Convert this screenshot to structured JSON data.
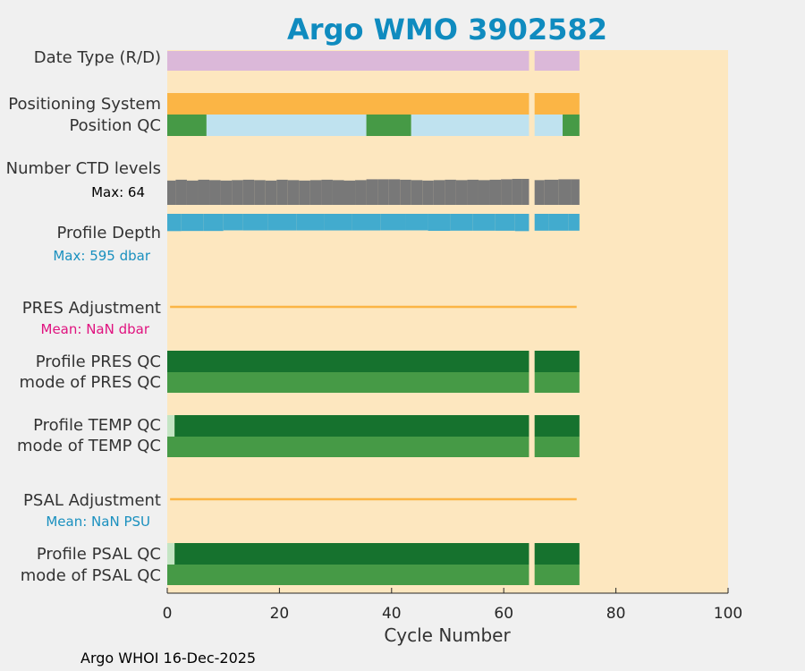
{
  "title": "Argo WMO 3902582",
  "footer": "Argo WHOI 16-Dec-2025",
  "colors": {
    "background": "#f0f0f0",
    "plot_area": "#fde7bf",
    "title": "#0f8bbf",
    "date_type": "#dbb8d9",
    "positioning": "#fbb545",
    "qc_good": "#469a46",
    "qc_light": "#bfe2ef",
    "qc_pale": "#c4e5c4",
    "qc_dark": "#16722e",
    "ctd": "#787878",
    "depth": "#42abce",
    "adjustment_line": "#fbb545",
    "depth_label": "#1a90bf",
    "pres_mean_label": "#e0127f",
    "psal_mean_label": "#1a90bf"
  },
  "chart_data": {
    "type": "bar",
    "title": "Argo WMO 3902582",
    "xlabel": "Cycle Number",
    "xlim": [
      0,
      100
    ],
    "xticks": [
      0,
      20,
      40,
      60,
      80,
      100
    ],
    "grid": false,
    "row_labels": {
      "date_type": "Date Type (R/D)",
      "positioning": "Positioning System",
      "position_qc": "Position QC",
      "ctd_levels": "Number CTD levels",
      "ctd_max": "Max: 64",
      "profile_depth": "Profile Depth",
      "depth_max": "Max:  595 dbar",
      "pres_adjustment": "PRES Adjustment",
      "pres_mean": "Mean:  NaN dbar",
      "profile_pres_qc": "Profile PRES QC",
      "mode_pres_qc": "mode of PRES QC",
      "profile_temp_qc": "Profile TEMP QC",
      "mode_temp_qc": "mode of TEMP QC",
      "psal_adjustment": "PSAL Adjustment",
      "psal_mean": "Mean:  NaN PSU",
      "profile_psal_qc": "Profile PSAL QC",
      "mode_psal_qc": "mode of PSAL QC"
    },
    "cycle_segments": [
      [
        0,
        64.5
      ],
      [
        65.5,
        73.5
      ]
    ],
    "position_qc_segments": [
      {
        "from": 0,
        "to": 7,
        "qc": "good"
      },
      {
        "from": 7,
        "to": 35.5,
        "qc": "light"
      },
      {
        "from": 35.5,
        "to": 43.5,
        "qc": "good"
      },
      {
        "from": 43.5,
        "to": 64.5,
        "qc": "light"
      },
      {
        "from": 65.5,
        "to": 70.5,
        "qc": "light"
      },
      {
        "from": 70.5,
        "to": 73.5,
        "qc": "good"
      }
    ],
    "profile_qc_first_cycle": "pale",
    "ctd_levels_max": 64,
    "ctd_levels": [
      [
        0.5,
        58
      ],
      [
        2.5,
        60
      ],
      [
        4.5,
        58
      ],
      [
        6.5,
        60
      ],
      [
        8.5,
        59
      ],
      [
        10.5,
        58
      ],
      [
        12.5,
        59
      ],
      [
        14.5,
        60
      ],
      [
        16.5,
        59
      ],
      [
        18.5,
        58
      ],
      [
        20.5,
        60
      ],
      [
        22.5,
        59
      ],
      [
        24.5,
        58
      ],
      [
        26.5,
        59
      ],
      [
        28.5,
        60
      ],
      [
        30.5,
        59
      ],
      [
        32.5,
        58
      ],
      [
        34.5,
        59
      ],
      [
        36.5,
        61
      ],
      [
        38.5,
        61
      ],
      [
        40.5,
        61
      ],
      [
        42.5,
        60
      ],
      [
        44.5,
        59
      ],
      [
        46.5,
        58
      ],
      [
        48.5,
        59
      ],
      [
        50.5,
        60
      ],
      [
        52.5,
        59
      ],
      [
        54.5,
        60
      ],
      [
        56.5,
        59
      ],
      [
        58.5,
        60
      ],
      [
        60.5,
        61
      ],
      [
        62.5,
        62
      ],
      [
        64.0,
        62
      ],
      [
        66.0,
        59
      ],
      [
        68.5,
        60
      ],
      [
        71.0,
        61
      ],
      [
        73.0,
        61
      ]
    ],
    "profile_depth_max": 595,
    "profile_depth": [
      [
        0.5,
        575
      ],
      [
        4.5,
        570
      ],
      [
        8.5,
        570
      ],
      [
        11.5,
        550
      ],
      [
        15.5,
        552
      ],
      [
        20.5,
        552
      ],
      [
        25.5,
        552
      ],
      [
        30.5,
        552
      ],
      [
        35.5,
        552
      ],
      [
        40.5,
        550
      ],
      [
        44.5,
        550
      ],
      [
        48.5,
        565
      ],
      [
        52.5,
        560
      ],
      [
        56.5,
        560
      ],
      [
        60.5,
        562
      ],
      [
        63.5,
        575
      ],
      [
        66.0,
        560
      ],
      [
        70.0,
        560
      ],
      [
        73.0,
        560
      ]
    ],
    "pres_adjustment_line": [
      0.5,
      73
    ],
    "psal_adjustment_line": [
      0.5,
      73
    ]
  }
}
